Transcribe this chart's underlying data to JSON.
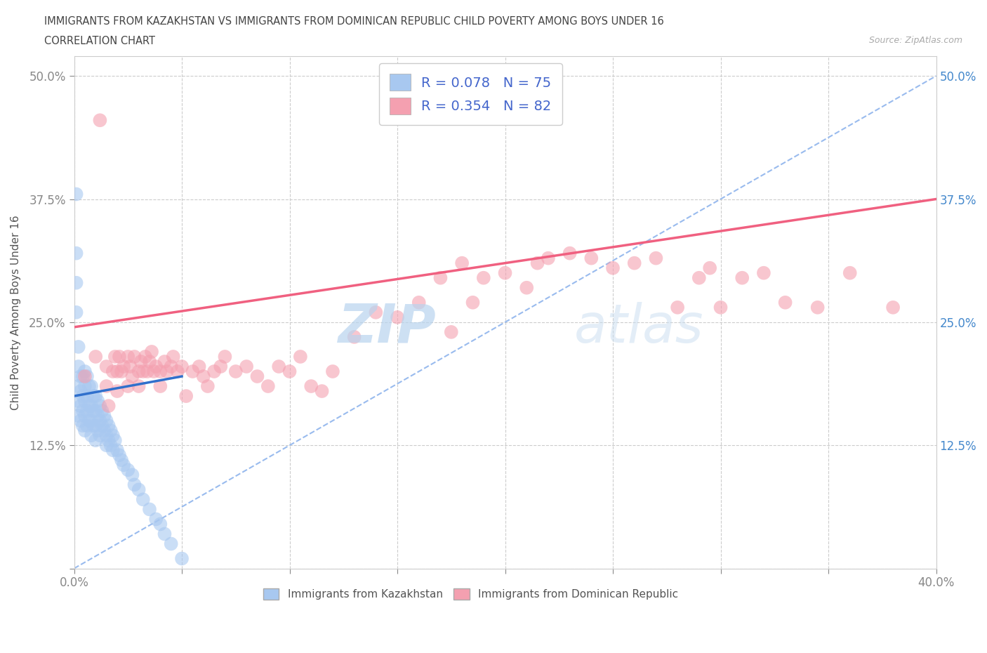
{
  "title_line1": "IMMIGRANTS FROM KAZAKHSTAN VS IMMIGRANTS FROM DOMINICAN REPUBLIC CHILD POVERTY AMONG BOYS UNDER 16",
  "title_line2": "CORRELATION CHART",
  "source_text": "Source: ZipAtlas.com",
  "ylabel": "Child Poverty Among Boys Under 16",
  "xlim": [
    0.0,
    0.4
  ],
  "ylim": [
    0.0,
    0.52
  ],
  "x_ticks": [
    0.0,
    0.05,
    0.1,
    0.15,
    0.2,
    0.25,
    0.3,
    0.35,
    0.4
  ],
  "y_ticks": [
    0.0,
    0.125,
    0.25,
    0.375,
    0.5
  ],
  "kazakhstan_color": "#a8c8f0",
  "dominican_color": "#f4a0b0",
  "kazakhstan_line_color": "#3070cc",
  "dominican_line_color": "#f06080",
  "diagonal_line_color": "#99bbee",
  "legend_r1": "R = 0.078",
  "legend_n1": "N = 75",
  "legend_r2": "R = 0.354",
  "legend_n2": "N = 82",
  "watermark_zip": "ZIP",
  "watermark_atlas": "atlas",
  "kaz_scatter_x": [
    0.001,
    0.001,
    0.001,
    0.001,
    0.002,
    0.002,
    0.002,
    0.002,
    0.002,
    0.003,
    0.003,
    0.003,
    0.003,
    0.004,
    0.004,
    0.004,
    0.004,
    0.005,
    0.005,
    0.005,
    0.005,
    0.005,
    0.006,
    0.006,
    0.006,
    0.006,
    0.007,
    0.007,
    0.007,
    0.008,
    0.008,
    0.008,
    0.008,
    0.009,
    0.009,
    0.009,
    0.01,
    0.01,
    0.01,
    0.01,
    0.011,
    0.011,
    0.011,
    0.012,
    0.012,
    0.012,
    0.013,
    0.013,
    0.014,
    0.014,
    0.015,
    0.015,
    0.015,
    0.016,
    0.016,
    0.017,
    0.017,
    0.018,
    0.018,
    0.019,
    0.02,
    0.021,
    0.022,
    0.023,
    0.025,
    0.027,
    0.028,
    0.03,
    0.032,
    0.035,
    0.038,
    0.04,
    0.042,
    0.045,
    0.05
  ],
  "kaz_scatter_y": [
    0.38,
    0.32,
    0.29,
    0.26,
    0.225,
    0.205,
    0.185,
    0.17,
    0.155,
    0.195,
    0.18,
    0.165,
    0.15,
    0.195,
    0.175,
    0.16,
    0.145,
    0.2,
    0.185,
    0.17,
    0.155,
    0.14,
    0.195,
    0.175,
    0.16,
    0.145,
    0.185,
    0.165,
    0.15,
    0.185,
    0.165,
    0.15,
    0.135,
    0.175,
    0.16,
    0.145,
    0.175,
    0.16,
    0.145,
    0.13,
    0.17,
    0.155,
    0.14,
    0.165,
    0.15,
    0.135,
    0.16,
    0.145,
    0.155,
    0.14,
    0.15,
    0.135,
    0.125,
    0.145,
    0.13,
    0.14,
    0.125,
    0.135,
    0.12,
    0.13,
    0.12,
    0.115,
    0.11,
    0.105,
    0.1,
    0.095,
    0.085,
    0.08,
    0.07,
    0.06,
    0.05,
    0.045,
    0.035,
    0.025,
    0.01
  ],
  "dom_scatter_x": [
    0.005,
    0.01,
    0.012,
    0.015,
    0.015,
    0.016,
    0.018,
    0.019,
    0.02,
    0.02,
    0.021,
    0.022,
    0.023,
    0.025,
    0.025,
    0.026,
    0.027,
    0.028,
    0.03,
    0.03,
    0.031,
    0.032,
    0.033,
    0.034,
    0.035,
    0.036,
    0.037,
    0.038,
    0.04,
    0.04,
    0.042,
    0.043,
    0.045,
    0.046,
    0.048,
    0.05,
    0.052,
    0.055,
    0.058,
    0.06,
    0.062,
    0.065,
    0.068,
    0.07,
    0.075,
    0.08,
    0.085,
    0.09,
    0.095,
    0.1,
    0.105,
    0.11,
    0.115,
    0.12,
    0.13,
    0.14,
    0.15,
    0.16,
    0.17,
    0.175,
    0.18,
    0.185,
    0.19,
    0.2,
    0.21,
    0.215,
    0.22,
    0.23,
    0.24,
    0.25,
    0.26,
    0.27,
    0.28,
    0.29,
    0.295,
    0.3,
    0.31,
    0.32,
    0.33,
    0.345,
    0.36,
    0.38
  ],
  "dom_scatter_y": [
    0.195,
    0.215,
    0.455,
    0.205,
    0.185,
    0.165,
    0.2,
    0.215,
    0.2,
    0.18,
    0.215,
    0.2,
    0.205,
    0.215,
    0.185,
    0.205,
    0.195,
    0.215,
    0.2,
    0.185,
    0.21,
    0.2,
    0.215,
    0.2,
    0.21,
    0.22,
    0.2,
    0.205,
    0.2,
    0.185,
    0.21,
    0.2,
    0.205,
    0.215,
    0.2,
    0.205,
    0.175,
    0.2,
    0.205,
    0.195,
    0.185,
    0.2,
    0.205,
    0.215,
    0.2,
    0.205,
    0.195,
    0.185,
    0.205,
    0.2,
    0.215,
    0.185,
    0.18,
    0.2,
    0.235,
    0.26,
    0.255,
    0.27,
    0.295,
    0.24,
    0.31,
    0.27,
    0.295,
    0.3,
    0.285,
    0.31,
    0.315,
    0.32,
    0.315,
    0.305,
    0.31,
    0.315,
    0.265,
    0.295,
    0.305,
    0.265,
    0.295,
    0.3,
    0.27,
    0.265,
    0.3,
    0.265
  ]
}
